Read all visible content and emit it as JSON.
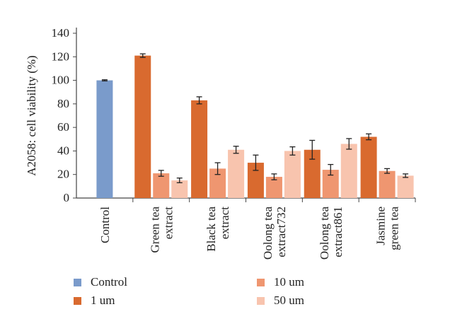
{
  "chart_data": {
    "type": "bar",
    "ylabel": "A2058: cell viability (%)",
    "xlabel": "",
    "title": "",
    "ylim": [
      0,
      140
    ],
    "yticks": [
      0,
      20,
      40,
      60,
      80,
      100,
      120,
      140
    ],
    "grid": false,
    "legend_position": "bottom",
    "categories": [
      {
        "name": "Control",
        "lines": [
          "Control"
        ]
      },
      {
        "name": "Green tea extract",
        "lines": [
          "Green tea",
          "extract"
        ]
      },
      {
        "name": "Black tea extract",
        "lines": [
          "Black tea",
          "extract"
        ]
      },
      {
        "name": "Oolong tea extract732",
        "lines": [
          "Oolong tea",
          "extract732"
        ]
      },
      {
        "name": "Oolong tea extract861",
        "lines": [
          "Oolong tea",
          "extract861"
        ]
      },
      {
        "name": "Jasmine green tea",
        "lines": [
          "Jasmine",
          "green tea"
        ]
      }
    ],
    "series": [
      {
        "name": "Control",
        "color": "#7a9bcb",
        "values": [
          100,
          null,
          null,
          null,
          null,
          null
        ],
        "errors": [
          0.5,
          null,
          null,
          null,
          null,
          null
        ]
      },
      {
        "name": "1 um",
        "color": "#d96a2f",
        "values": [
          null,
          121,
          83,
          30,
          41,
          52
        ],
        "errors": [
          null,
          1.5,
          3,
          6.5,
          8,
          2.5
        ]
      },
      {
        "name": "10 um",
        "color": "#ef9670",
        "values": [
          null,
          21,
          25,
          18,
          24,
          23
        ],
        "errors": [
          null,
          2.5,
          5,
          2.5,
          4.5,
          2
        ]
      },
      {
        "name": "50 um",
        "color": "#f8c4ae",
        "values": [
          null,
          15,
          null,
          null,
          null,
          null
        ],
        "errors": [
          null,
          2,
          null,
          null,
          null,
          null
        ]
      }
    ],
    "series_b": [
      {
        "name": "50 um",
        "color": "#f8c4ae",
        "values": [
          null,
          null,
          41,
          40,
          46,
          19
        ],
        "errors": [
          null,
          null,
          3,
          3.5,
          4.5,
          1.5
        ]
      }
    ],
    "legend": [
      {
        "label": "Control",
        "color": "#7a9bcb"
      },
      {
        "label": "1 um",
        "color": "#d96a2f"
      },
      {
        "label": "10 um",
        "color": "#ef9670"
      },
      {
        "label": "50 um",
        "color": "#f8c4ae"
      }
    ]
  }
}
